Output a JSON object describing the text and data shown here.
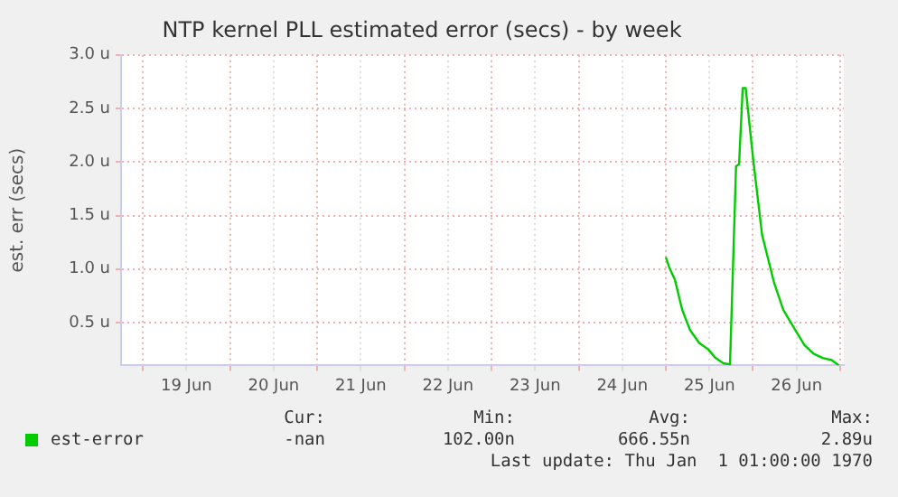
{
  "chart_data": {
    "type": "line",
    "title": "NTP kernel PLL estimated error (secs) - by week",
    "ylabel": "est. err (secs)",
    "x": [
      "--06-25T00:00",
      "--06-25T01:00",
      "--06-25T02:30",
      "--06-25T04:30",
      "--06-25T06:40",
      "--06-25T09:10",
      "--06-25T11:40",
      "--06-25T13:40",
      "--06-25T15:50",
      "--06-25T17:40",
      "--06-25T19:20",
      "--06-25T20:10",
      "--06-25T21:10",
      "--06-25T22:00",
      "--06-26T00:00",
      "--06-26T02:30",
      "--06-26T05:50",
      "--06-26T08:20",
      "--06-26T11:40",
      "--06-26T14:10",
      "--06-26T16:40",
      "--06-26T19:10",
      "--06-26T21:40",
      "--06-26T23:40"
    ],
    "series": [
      {
        "name": "est-error",
        "color": "#00cc00",
        "values": [
          1.11,
          1.01,
          0.9,
          0.62,
          0.43,
          0.31,
          0.25,
          0.17,
          0.12,
          0.11,
          1.96,
          1.98,
          2.69,
          2.69,
          2.04,
          1.32,
          0.87,
          0.62,
          0.43,
          0.29,
          0.21,
          0.17,
          0.15,
          0.1
        ]
      }
    ],
    "xlim": [
      "--06-18T18:00",
      "--06-27T01:00"
    ],
    "xticks": [
      {
        "value": "--06-19T00:00",
        "label": null
      },
      {
        "value": "--06-19T12:00",
        "label": "19 Jun"
      },
      {
        "value": "--06-20T00:00",
        "label": null
      },
      {
        "value": "--06-20T12:00",
        "label": "20 Jun"
      },
      {
        "value": "--06-21T00:00",
        "label": null
      },
      {
        "value": "--06-21T12:00",
        "label": "21 Jun"
      },
      {
        "value": "--06-22T00:00",
        "label": null
      },
      {
        "value": "--06-22T12:00",
        "label": "22 Jun"
      },
      {
        "value": "--06-23T00:00",
        "label": null
      },
      {
        "value": "--06-23T12:00",
        "label": "23 Jun"
      },
      {
        "value": "--06-24T00:00",
        "label": null
      },
      {
        "value": "--06-24T12:00",
        "label": "24 Jun"
      },
      {
        "value": "--06-25T00:00",
        "label": null
      },
      {
        "value": "--06-25T12:00",
        "label": "25 Jun"
      },
      {
        "value": "--06-26T00:00",
        "label": null
      },
      {
        "value": "--06-26T12:00",
        "label": "26 Jun"
      },
      {
        "value": "--06-27T00:00",
        "label": null
      }
    ],
    "ylim": [
      0.1,
      3.0
    ],
    "yticks": [
      {
        "value": 0.5,
        "label": "0.5 u"
      },
      {
        "value": 1.0,
        "label": "1.0 u"
      },
      {
        "value": 1.5,
        "label": "1.5 u"
      },
      {
        "value": 2.0,
        "label": "2.0 u"
      },
      {
        "value": 2.5,
        "label": "2.5 u"
      },
      {
        "value": 3.0,
        "label": "3.0 u"
      }
    ],
    "grid": true,
    "legend": "bottom left",
    "marker": "none",
    "line_style": "solid",
    "annotations": [
      "Cur:",
      "Min:",
      "Avg:",
      "Max:",
      "-nan",
      "102.00n",
      "666.55n",
      "2.89u",
      "Last update: Thu Jan  1 01:00:00 1970"
    ]
  }
}
